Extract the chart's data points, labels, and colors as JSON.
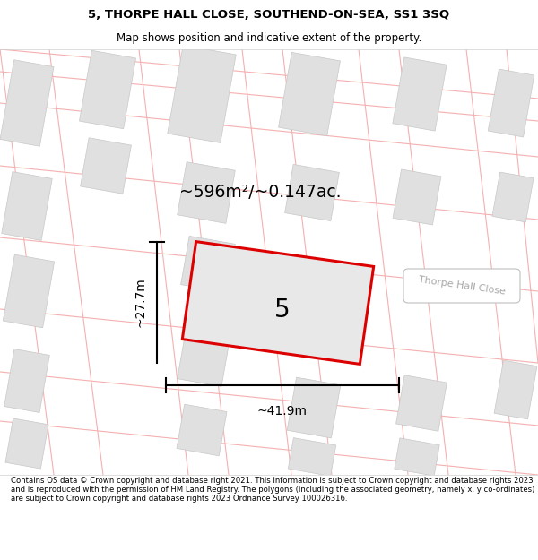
{
  "title_line1": "5, THORPE HALL CLOSE, SOUTHEND-ON-SEA, SS1 3SQ",
  "title_line2": "Map shows position and indicative extent of the property.",
  "area_text": "~596m²/~0.147ac.",
  "property_number": "5",
  "width_label": "~41.9m",
  "height_label": "~27.7m",
  "road_label": "Thorpe Hall Close",
  "footer_text": "Contains OS data © Crown copyright and database right 2021. This information is subject to Crown copyright and database rights 2023 and is reproduced with the permission of HM Land Registry. The polygons (including the associated geometry, namely x, y co-ordinates) are subject to Crown copyright and database rights 2023 Ordnance Survey 100026316.",
  "map_bg": "#ffffff",
  "property_fill": "#e8e8e8",
  "property_edge": "#dd0000",
  "building_fill": "#e0e0e0",
  "building_edge": "#c8c8c8",
  "road_line_color": "#f5b0b0",
  "panel_color": "#ffffff",
  "title_fontsize": 9.5,
  "subtitle_fontsize": 8.5,
  "map_road_lw": 0.8
}
